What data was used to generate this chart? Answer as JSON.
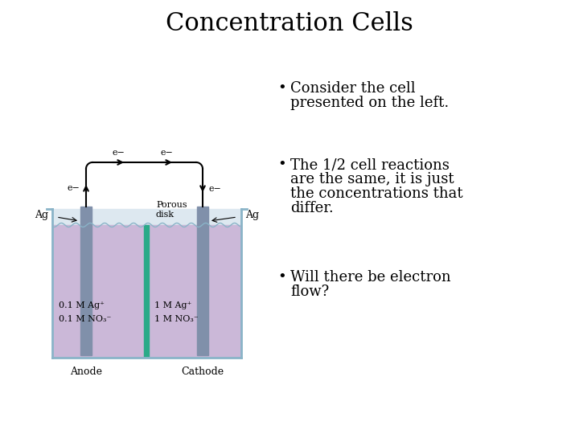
{
  "title": "Concentration Cells",
  "title_fontsize": 22,
  "title_font": "serif",
  "background_color": "#ffffff",
  "bullet1_line1": "Consider the cell",
  "bullet1_line2": "presented on the left.",
  "bullet2_line1": "The 1/2 cell reactions",
  "bullet2_line2": "are the same, it is just",
  "bullet2_line3": "the concentrations that",
  "bullet2_line4": "differ.",
  "bullet3_line1": "Will there be electron",
  "bullet3_line2": "flow?",
  "bullet_fontsize": 13,
  "bullet_font": "serif",
  "solution_color": "#cbb8d8",
  "beaker_fill_color": "#dde8f0",
  "beaker_outline_color": "#8ab4c8",
  "electrode_color": "#8090aa",
  "porous_disk_color": "#2aaa88",
  "anode_label": "Anode",
  "cathode_label": "Cathode",
  "ag_label": "Ag",
  "porous_label_line1": "Porous",
  "porous_label_line2": "disk",
  "left_conc_line1": "0.1 ",
  "left_conc_line1_M": "M",
  "left_conc_line1_rest": " Ag",
  "left_conc_line1_sup": "+",
  "left_conc_line2": "0.1 ",
  "left_conc_line2_M": "M",
  "left_conc_line2_rest": " NO",
  "left_conc_line2_sub": "3",
  "left_conc_line2_sup2": "−",
  "right_conc_line1": "1 ",
  "right_conc_line1_M": "M",
  "right_conc_line1_rest": " Ag",
  "right_conc_line1_sup": "+",
  "right_conc_line2": "1 ",
  "right_conc_line2_M": "M",
  "right_conc_line2_rest": " NO",
  "right_conc_line2_sub": "3",
  "right_conc_line2_sup2": "−",
  "electron_label": "e−"
}
